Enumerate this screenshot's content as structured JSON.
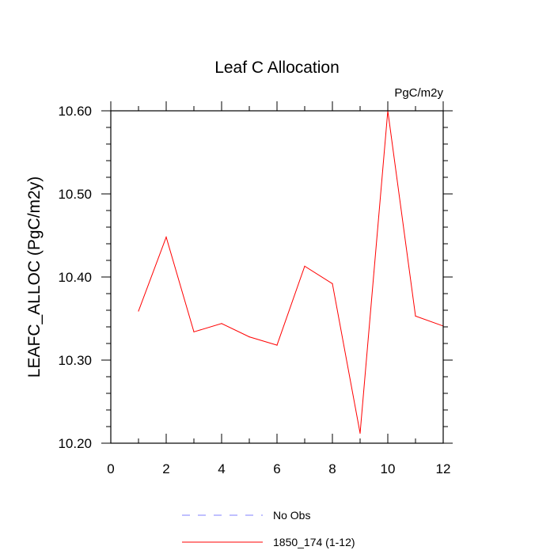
{
  "chart_data": {
    "type": "line",
    "title": "Leaf C Allocation",
    "units_label": "PgC/m2y",
    "ylabel": "LEAFC_ALLOC  (PgC/m2y)",
    "xlabel": "",
    "xlim": [
      0,
      12
    ],
    "ylim": [
      10.2,
      10.6
    ],
    "x_ticks": [
      0,
      2,
      4,
      6,
      8,
      10,
      12
    ],
    "x_tick_labels": [
      "0",
      "2",
      "4",
      "6",
      "8",
      "10",
      "12"
    ],
    "y_ticks": [
      10.2,
      10.3,
      10.4,
      10.5,
      10.6
    ],
    "y_tick_labels": [
      "10.20",
      "10.30",
      "10.40",
      "10.50",
      "10.60"
    ],
    "grid": false,
    "legend_position": "bottom",
    "series": [
      {
        "name": "1850_174 (1-12)",
        "color": "#ff0000",
        "style": "solid",
        "x": [
          1,
          2,
          3,
          4,
          5,
          6,
          7,
          8,
          9,
          10,
          11,
          12
        ],
        "y": [
          10.359,
          10.448,
          10.334,
          10.344,
          10.328,
          10.318,
          10.413,
          10.392,
          10.212,
          10.6,
          10.353,
          10.341
        ]
      }
    ],
    "legend": [
      {
        "label": "No Obs",
        "color": "#8080ff",
        "style": "dashed"
      },
      {
        "label": "1850_174 (1-12)",
        "color": "#ff0000",
        "style": "solid"
      }
    ]
  }
}
